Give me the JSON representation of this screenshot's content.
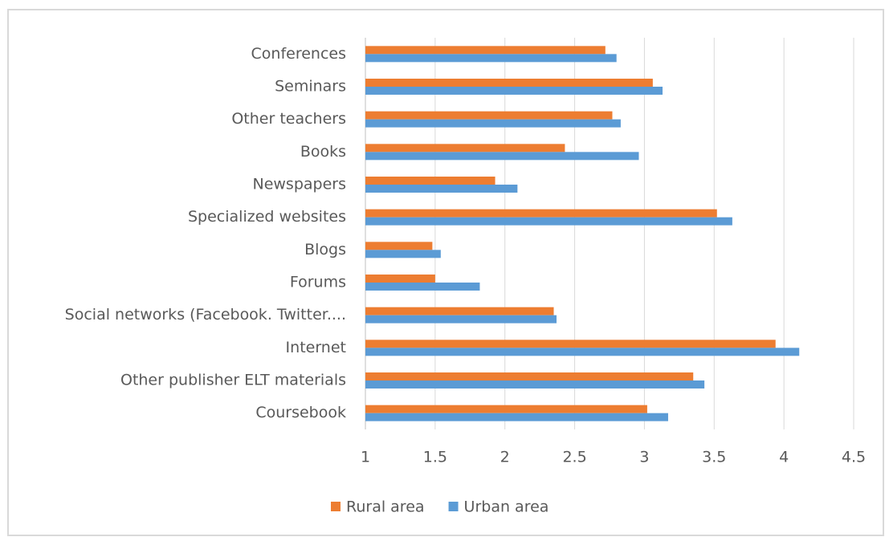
{
  "chart_data": {
    "type": "bar",
    "orientation": "horizontal",
    "categories": [
      "Conferences",
      "Seminars",
      "Other teachers",
      "Books",
      "Newspapers",
      "Specialized websites",
      "Blogs",
      "Forums",
      "Social networks (Facebook. Twitter....",
      "Internet",
      "Other publisher ELT materials",
      "Coursebook"
    ],
    "series": [
      {
        "name": "Rural area",
        "color": "#ed7d31",
        "values": [
          2.72,
          3.06,
          2.77,
          2.43,
          1.93,
          3.52,
          1.48,
          1.5,
          2.35,
          3.94,
          3.35,
          3.02
        ]
      },
      {
        "name": "Urban area",
        "color": "#5b9bd5",
        "values": [
          2.8,
          3.13,
          2.83,
          2.96,
          2.09,
          3.63,
          1.54,
          1.82,
          2.37,
          4.11,
          3.43,
          3.17
        ]
      }
    ],
    "xlim": [
      1,
      4.5
    ],
    "xticks": [
      1,
      1.5,
      2,
      2.5,
      3,
      3.5,
      4,
      4.5
    ],
    "grid": true,
    "legend": "bottom"
  }
}
